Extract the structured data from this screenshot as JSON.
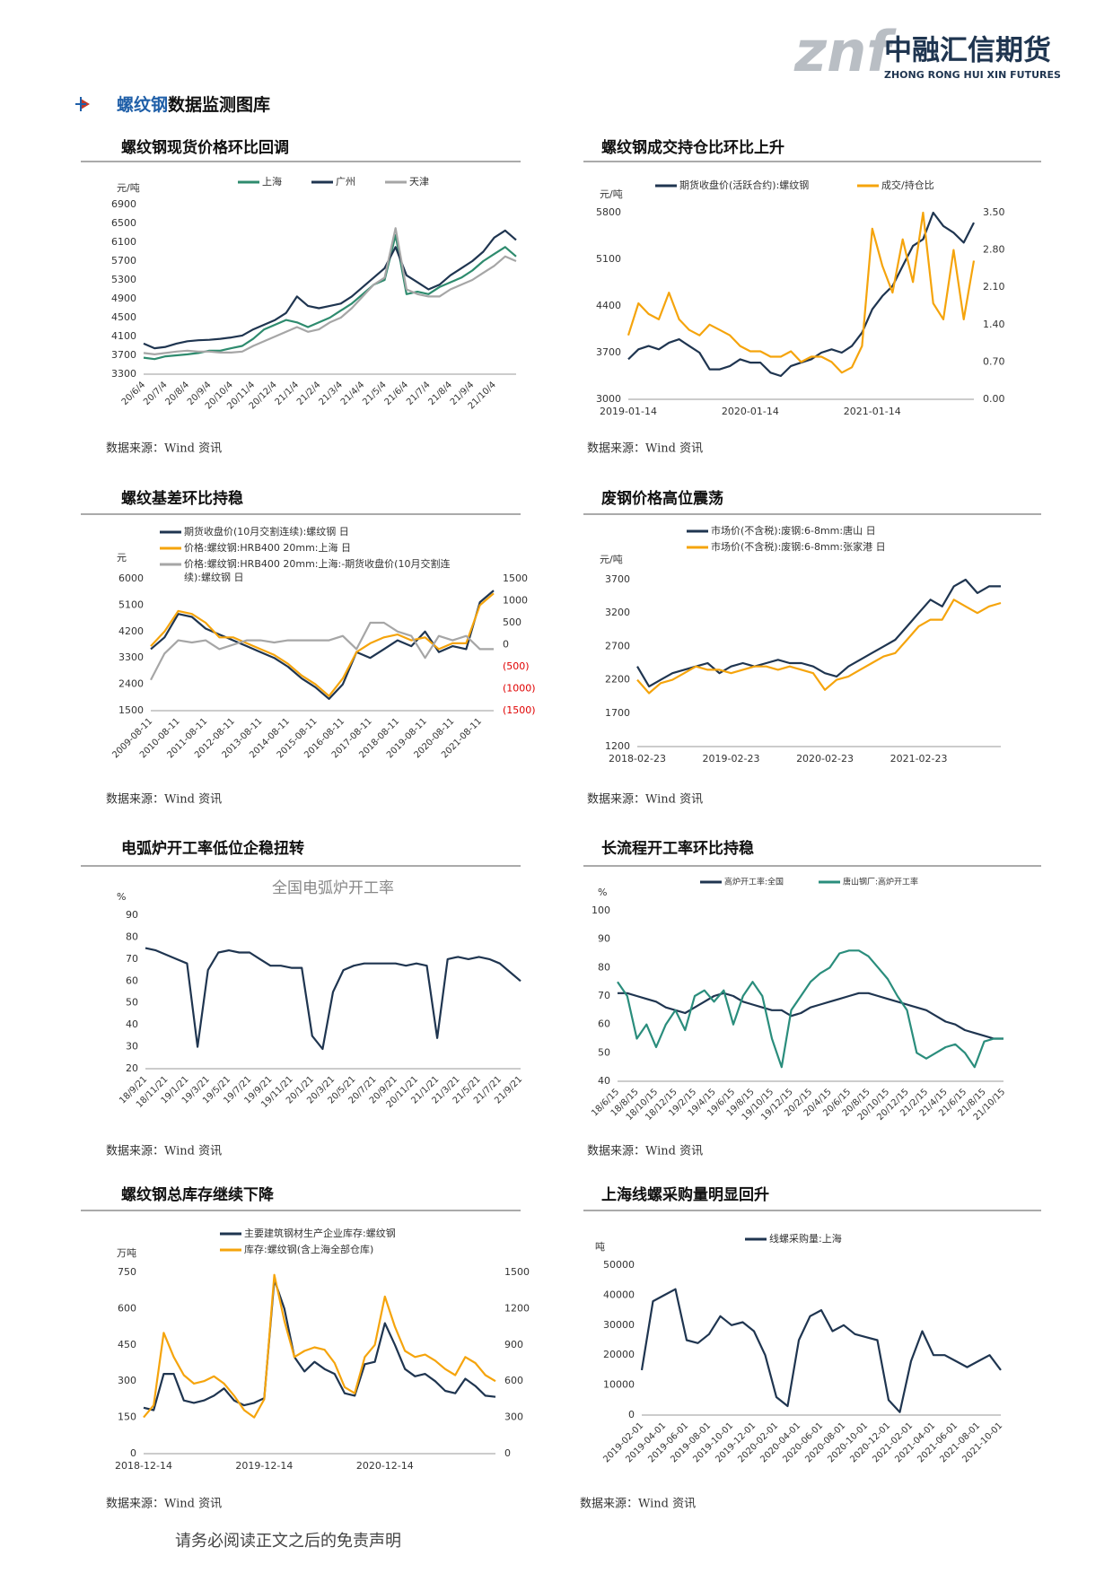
{
  "header": {
    "logo_mark": "znf",
    "logo_text": "中融汇信期货",
    "logo_subtext": "ZHONG RONG HUI XIN FUTURES"
  },
  "section": {
    "highlight": "螺纹钢",
    "title": "数据监测图库"
  },
  "footer": "请务必阅读正文之后的免责声明",
  "chart_data": [
    {
      "type": "line",
      "title": "螺纹钢现货价格环比回调",
      "source": "数据来源：Wind 资讯",
      "y_unit": "元/吨",
      "categories": [
        "20/6/4",
        null,
        "20/7/4",
        null,
        "20/8/4",
        null,
        "20/9/4",
        null,
        "20/10/4",
        null,
        "20/11/4",
        null,
        "20/12/4",
        null,
        "21/1/4",
        null,
        "21/2/4",
        null,
        "21/3/4",
        null,
        "21/4/4",
        null,
        "21/5/4",
        null,
        "21/6/4",
        null,
        "21/7/4",
        null,
        "21/8/4",
        null,
        "21/9/4",
        null,
        "21/10/4",
        null,
        null
      ],
      "ylim": [
        3300,
        6900
      ],
      "yticks": [
        3300,
        3700,
        4100,
        4500,
        4900,
        5300,
        5700,
        6100,
        6500,
        6900
      ],
      "series": [
        {
          "name": "上海",
          "color": "#2e8b6e",
          "values": [
            3650,
            3620,
            3680,
            3700,
            3720,
            3750,
            3800,
            3800,
            3850,
            3900,
            4050,
            4250,
            4350,
            4450,
            4400,
            4300,
            4400,
            4500,
            4650,
            4800,
            5000,
            5200,
            5300,
            6250,
            5000,
            5050,
            5000,
            5150,
            5250,
            5350,
            5500,
            5700,
            5850,
            6000,
            5800
          ]
        },
        {
          "name": "广州",
          "color": "#1f3550",
          "values": [
            3950,
            3850,
            3880,
            3950,
            4000,
            4020,
            4030,
            4050,
            4080,
            4120,
            4250,
            4350,
            4450,
            4600,
            4950,
            4750,
            4700,
            4750,
            4800,
            4950,
            5150,
            5350,
            5550,
            6000,
            5400,
            5250,
            5100,
            5200,
            5400,
            5550,
            5700,
            5900,
            6200,
            6350,
            6150
          ]
        },
        {
          "name": "天津",
          "color": "#a6a6a6",
          "values": [
            3750,
            3720,
            3750,
            3780,
            3800,
            3780,
            3780,
            3760,
            3760,
            3780,
            3900,
            4000,
            4100,
            4200,
            4300,
            4200,
            4250,
            4400,
            4500,
            4700,
            4950,
            5200,
            5350,
            6400,
            5100,
            5000,
            4950,
            4950,
            5100,
            5200,
            5300,
            5450,
            5600,
            5800,
            5700
          ]
        }
      ]
    },
    {
      "type": "line",
      "title": "螺纹钢成交持仓比环比上升",
      "source": "数据来源：Wind 资讯",
      "y_unit": "元/吨",
      "categories": [
        "2019-01-14",
        null,
        null,
        null,
        null,
        null,
        null,
        null,
        null,
        null,
        null,
        null,
        "2020-01-14",
        null,
        null,
        null,
        null,
        null,
        null,
        null,
        null,
        null,
        null,
        null,
        "2021-01-14",
        null,
        null,
        null,
        null,
        null,
        null,
        null,
        null,
        null,
        null
      ],
      "ylim": [
        3000,
        5800
      ],
      "yticks": [
        3000,
        3700,
        4400,
        5100,
        5800
      ],
      "y2lim": [
        0,
        3.5
      ],
      "y2ticks": [
        {
          "value": 0,
          "label": "0.00"
        },
        {
          "value": 0.7,
          "label": "0.70"
        },
        {
          "value": 1.4,
          "label": "1.40"
        },
        {
          "value": 2.1,
          "label": "2.10"
        },
        {
          "value": 2.8,
          "label": "2.80"
        },
        {
          "value": 3.5,
          "label": "3.50"
        }
      ],
      "series": [
        {
          "name": "期货收盘价(活跃合约):螺纹钢",
          "color": "#1f3550",
          "values": [
            3600,
            3750,
            3800,
            3750,
            3850,
            3900,
            3800,
            3700,
            3450,
            3450,
            3500,
            3600,
            3550,
            3550,
            3400,
            3350,
            3500,
            3550,
            3600,
            3700,
            3750,
            3700,
            3800,
            4000,
            4350,
            4550,
            4700,
            5000,
            5300,
            5400,
            5800,
            5600,
            5500,
            5350,
            5650
          ]
        },
        {
          "name": "成交/持仓比",
          "color": "#f5a40c",
          "axis": "y2",
          "values": [
            1.2,
            1.8,
            1.6,
            1.5,
            2.0,
            1.5,
            1.3,
            1.2,
            1.4,
            1.3,
            1.2,
            1.0,
            0.9,
            0.9,
            0.8,
            0.8,
            0.9,
            0.7,
            0.8,
            0.8,
            0.7,
            0.5,
            0.6,
            1.0,
            3.2,
            2.5,
            2.0,
            3.0,
            2.2,
            3.5,
            1.8,
            1.5,
            2.8,
            1.5,
            2.6
          ]
        }
      ]
    },
    {
      "type": "line",
      "title": "螺纹基差环比持稳",
      "source": "数据来源：Wind 资讯",
      "y_unit": "元",
      "categories": [
        "2009-08-11",
        null,
        "2010-08-11",
        null,
        "2011-08-11",
        null,
        "2012-08-11",
        null,
        "2013-08-11",
        null,
        "2014-08-11",
        null,
        "2015-08-11",
        null,
        "2016-08-11",
        null,
        "2017-08-11",
        null,
        "2018-08-11",
        null,
        "2019-08-11",
        null,
        "2020-08-11",
        null,
        "2021-08-11",
        null
      ],
      "ylim": [
        1500,
        6000
      ],
      "yticks": [
        1500,
        2400,
        3300,
        4200,
        5100,
        6000
      ],
      "y2lim": [
        -1500,
        1500
      ],
      "y2ticks": [
        1500,
        1000,
        500,
        0,
        {
          "value": -500,
          "label": "(500)"
        },
        {
          "value": -1000,
          "label": "(1000)"
        },
        {
          "value": -1500,
          "label": "(1500)"
        }
      ],
      "negative_tick_color": "#e00000",
      "series": [
        {
          "name": "期货收盘价(10月交割连续):螺纹钢 日",
          "color": "#1f3550",
          "values": [
            3600,
            4000,
            4800,
            4700,
            4300,
            4100,
            3900,
            3700,
            3500,
            3300,
            3000,
            2600,
            2300,
            1900,
            2400,
            3500,
            3300,
            3600,
            3900,
            3700,
            4200,
            3500,
            3700,
            3600,
            5200,
            5600
          ]
        },
        {
          "name": "价格:螺纹钢:HRB400 20mm:上海 日",
          "color": "#f5a40c",
          "values": [
            3700,
            4200,
            4900,
            4800,
            4500,
            4000,
            4000,
            3800,
            3600,
            3400,
            3100,
            2700,
            2400,
            2000,
            2600,
            3500,
            3800,
            4000,
            4100,
            3900,
            4000,
            3600,
            3800,
            3800,
            5100,
            5500
          ]
        },
        {
          "name": "价格:螺纹钢:HRB400 20mm:上海:-期货收盘价(10月交割连续):螺纹钢 日",
          "color": "#a6a6a6",
          "axis": "y2",
          "values": [
            -800,
            -200,
            100,
            50,
            100,
            -100,
            0,
            100,
            100,
            50,
            100,
            100,
            100,
            100,
            200,
            -100,
            500,
            500,
            300,
            200,
            -300,
            200,
            100,
            200,
            -100,
            -100
          ]
        }
      ]
    },
    {
      "type": "line",
      "title": "废钢价格高位震荡",
      "source": "数据来源：Wind 资讯",
      "y_unit": "元/吨",
      "categories": [
        "2018-02-23",
        null,
        null,
        null,
        null,
        null,
        null,
        null,
        "2019-02-23",
        null,
        null,
        null,
        null,
        null,
        null,
        null,
        "2020-02-23",
        null,
        null,
        null,
        null,
        null,
        null,
        null,
        "2021-02-23",
        null,
        null,
        null,
        null,
        null,
        null,
        null
      ],
      "ylim": [
        1200,
        3700
      ],
      "yticks": [
        1200,
        1700,
        2200,
        2700,
        3200,
        3700
      ],
      "series": [
        {
          "name": "市场价(不含税):废钢:6-8mm:唐山 日",
          "color": "#1f3550",
          "values": [
            2400,
            2100,
            2200,
            2300,
            2350,
            2400,
            2450,
            2300,
            2400,
            2450,
            2400,
            2450,
            2500,
            2450,
            2450,
            2400,
            2300,
            2250,
            2400,
            2500,
            2600,
            2700,
            2800,
            3000,
            3200,
            3400,
            3300,
            3600,
            3700,
            3500,
            3600,
            3600
          ]
        },
        {
          "name": "市场价(不含税):废钢:6-8mm:张家港 日",
          "color": "#f5a40c",
          "values": [
            2200,
            2000,
            2150,
            2200,
            2300,
            2400,
            2350,
            2350,
            2300,
            2350,
            2400,
            2400,
            2350,
            2400,
            2350,
            2300,
            2050,
            2200,
            2250,
            2350,
            2450,
            2550,
            2600,
            2800,
            3000,
            3100,
            3100,
            3400,
            3300,
            3200,
            3300,
            3350
          ]
        }
      ]
    },
    {
      "type": "line",
      "title": "电弧炉开工率低位企稳扭转",
      "source": "数据来源：Wind 资讯",
      "y_unit": "%",
      "inner_title": "全国电弧炉开工率",
      "categories": [
        "18/9/21",
        null,
        "18/11/21",
        null,
        "19/1/21",
        null,
        "19/3/21",
        null,
        "19/5/21",
        null,
        "19/7/21",
        null,
        "19/9/21",
        null,
        "19/11/21",
        null,
        "20/1/21",
        null,
        "20/3/21",
        null,
        "20/5/21",
        null,
        "20/7/21",
        null,
        "20/9/21",
        null,
        "20/11/21",
        null,
        "21/1/21",
        null,
        "21/3/21",
        null,
        "21/5/21",
        null,
        "21/7/21",
        null,
        "21/9/21"
      ],
      "ylim": [
        20,
        90
      ],
      "yticks": [
        20,
        30,
        40,
        50,
        60,
        70,
        80,
        90
      ],
      "color": "#1f3550",
      "values": [
        75,
        74,
        72,
        70,
        68,
        30,
        65,
        73,
        74,
        73,
        73,
        70,
        67,
        67,
        66,
        66,
        35,
        29,
        55,
        65,
        67,
        68,
        68,
        68,
        68,
        67,
        68,
        67,
        34,
        70,
        71,
        70,
        71,
        70,
        68,
        64,
        60
      ]
    },
    {
      "type": "line",
      "title": "长流程开工率环比持稳",
      "source": "数据来源：Wind 资讯",
      "y_unit": "%",
      "categories": [
        "18/6/15",
        null,
        "18/8/15",
        null,
        "18/10/15",
        null,
        "18/12/15",
        null,
        "19/2/15",
        null,
        "19/4/15",
        null,
        "19/6/15",
        null,
        "19/8/15",
        null,
        "19/10/15",
        null,
        "19/12/15",
        null,
        "20/2/15",
        null,
        "20/4/15",
        null,
        "20/6/15",
        null,
        "20/8/15",
        null,
        "20/10/15",
        null,
        "20/12/15",
        null,
        "21/2/15",
        null,
        "21/4/15",
        null,
        "21/6/15",
        null,
        "21/8/15",
        null,
        "21/10/15"
      ],
      "ylim": [
        40,
        100
      ],
      "yticks": [
        40,
        50,
        60,
        70,
        80,
        90,
        100
      ],
      "series": [
        {
          "name": "高炉开工率:全国",
          "color": "#1f3550",
          "values": [
            71,
            71,
            70,
            69,
            68,
            66,
            65,
            64,
            66,
            68,
            70,
            71,
            70,
            68,
            67,
            66,
            65,
            65,
            63,
            64,
            66,
            67,
            68,
            69,
            70,
            71,
            71,
            70,
            69,
            68,
            67,
            66,
            65,
            63,
            61,
            60,
            58,
            57,
            56,
            55,
            55
          ]
        },
        {
          "name": "唐山钢厂:高炉开工率",
          "color": "#2a8d7c",
          "values": [
            75,
            70,
            55,
            60,
            52,
            60,
            65,
            58,
            70,
            72,
            68,
            72,
            60,
            70,
            75,
            70,
            55,
            45,
            65,
            70,
            75,
            78,
            80,
            85,
            86,
            86,
            84,
            80,
            76,
            70,
            65,
            50,
            48,
            50,
            52,
            53,
            50,
            45,
            54,
            55,
            55
          ]
        }
      ]
    },
    {
      "type": "line",
      "title": "螺纹钢总库存继续下降",
      "source": "数据来源：Wind 资讯",
      "y_unit": "万吨",
      "categories": [
        "2018-12-14",
        null,
        null,
        null,
        null,
        null,
        null,
        null,
        null,
        null,
        null,
        null,
        "2019-12-14",
        null,
        null,
        null,
        null,
        null,
        null,
        null,
        null,
        null,
        null,
        null,
        "2020-12-14",
        null,
        null,
        null,
        null,
        null,
        null,
        null,
        null,
        null,
        null,
        null
      ],
      "ylim": [
        0,
        750
      ],
      "yticks": [
        0,
        150,
        300,
        450,
        600,
        750
      ],
      "y2lim": [
        0,
        1500
      ],
      "y2ticks": [
        0,
        300,
        600,
        900,
        1200,
        1500
      ],
      "series": [
        {
          "name": "主要建筑钢材生产企业库存:螺纹钢",
          "color": "#1f3550",
          "values": [
            190,
            180,
            330,
            330,
            220,
            210,
            220,
            240,
            270,
            220,
            200,
            210,
            230,
            720,
            600,
            400,
            340,
            380,
            350,
            330,
            250,
            240,
            370,
            380,
            540,
            450,
            350,
            320,
            330,
            300,
            260,
            250,
            310,
            280,
            240,
            235
          ]
        },
        {
          "name": "库存:螺纹钢(含上海全部仓库)",
          "color": "#f5a40c",
          "axis": "y2",
          "values": [
            300,
            400,
            1000,
            800,
            650,
            580,
            600,
            640,
            580,
            480,
            360,
            300,
            450,
            1480,
            1100,
            800,
            850,
            880,
            860,
            750,
            550,
            500,
            800,
            900,
            1300,
            1050,
            850,
            800,
            820,
            770,
            700,
            650,
            800,
            750,
            650,
            600
          ]
        }
      ]
    },
    {
      "type": "line",
      "title": "上海线螺采购量明显回升",
      "source": "数据来源：Wind 资讯",
      "y_unit": "吨",
      "categories": [
        "2019-02-01",
        null,
        "2019-04-01",
        null,
        "2019-06-01",
        null,
        "2019-08-01",
        null,
        "2019-10-01",
        null,
        "2019-12-01",
        null,
        "2020-02-01",
        null,
        "2020-04-01",
        null,
        "2020-06-01",
        null,
        "2020-08-01",
        null,
        "2020-10-01",
        null,
        "2020-12-01",
        null,
        "2021-02-01",
        null,
        "2021-04-01",
        null,
        "2021-06-01",
        null,
        "2021-08-01",
        null,
        "2021-10-01"
      ],
      "ylim": [
        0,
        50000
      ],
      "yticks": [
        0,
        10000,
        20000,
        30000,
        40000,
        50000
      ],
      "series": [
        {
          "name": "线螺采购量:上海",
          "color": "#1f3550",
          "values": [
            15000,
            38000,
            40000,
            42000,
            25000,
            24000,
            27000,
            33000,
            30000,
            31000,
            28000,
            20000,
            6000,
            3000,
            25000,
            33000,
            35000,
            28000,
            30000,
            27000,
            26000,
            25000,
            5000,
            1000,
            18000,
            28000,
            20000,
            20000,
            18000,
            16000,
            18000,
            20000,
            15000
          ]
        }
      ]
    }
  ]
}
